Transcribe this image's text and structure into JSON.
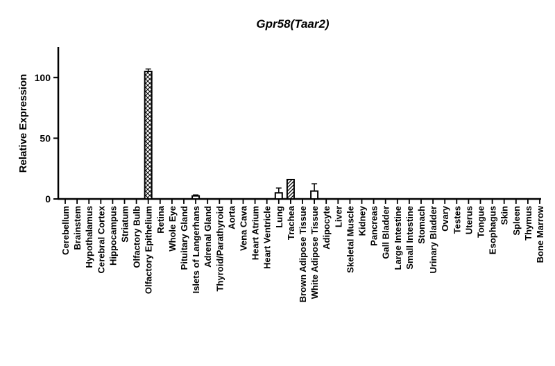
{
  "chart_data": {
    "type": "bar",
    "title": "Gpr58(Taar2)",
    "xlabel": "",
    "ylabel": "Relative Expression",
    "ylim": [
      0,
      125
    ],
    "yticks": [
      0,
      50,
      100
    ],
    "grid": false,
    "categories": [
      "Cerebellum",
      "Brainstem",
      "Hypothalamus",
      "Cerebral Cortex",
      "Hippocampus",
      "Striatum",
      "Olfactory Bulb",
      "Olfactory Epithelium",
      "Retina",
      "Whole Eye",
      "Pituitary Gland",
      "Islets of Langerhans",
      "Adrenal Gland",
      "Thyroid/Parathyroid",
      "Aorta",
      "Vena Cava",
      "Heart Atrium",
      "Heart Ventricle",
      "Lung",
      "Trachea",
      "Brown Adipose Tissue",
      "White Adipose Tissue",
      "Adipocyte",
      "Liver",
      "Skeletal Muscle",
      "Kidney",
      "Pancreas",
      "Gall Bladder",
      "Large Intestine",
      "Small Intestine",
      "Stomach",
      "Urinary Bladder",
      "Ovary",
      "Testes",
      "Uterus",
      "Tongue",
      "Esophagus",
      "Skin",
      "Spleen",
      "Thymus",
      "Bone Marrow"
    ],
    "values": [
      0,
      0,
      0,
      0,
      0,
      0,
      0,
      105,
      0,
      0,
      0,
      2.5,
      0,
      0,
      0,
      0,
      0,
      0,
      5,
      16,
      0,
      6.5,
      0,
      0,
      0,
      0,
      0,
      0,
      0,
      0,
      0,
      0,
      0,
      0,
      0,
      0,
      0,
      0,
      0,
      0,
      0
    ],
    "errors": [
      0,
      0,
      0,
      0,
      0,
      0,
      0,
      2,
      0,
      0,
      0,
      0.8,
      0,
      0,
      0,
      0,
      0,
      0,
      4,
      0,
      0,
      6,
      0,
      0,
      0,
      0,
      0,
      0,
      0,
      0,
      0,
      0,
      0,
      0,
      0,
      0,
      0,
      0,
      0,
      0,
      0
    ],
    "patterns": [
      "none",
      "none",
      "none",
      "none",
      "none",
      "none",
      "none",
      "crosshatch",
      "none",
      "none",
      "none",
      "none",
      "none",
      "none",
      "none",
      "none",
      "none",
      "none",
      "none",
      "diagonal",
      "none",
      "none",
      "none",
      "none",
      "none",
      "none",
      "none",
      "none",
      "none",
      "none",
      "none",
      "none",
      "none",
      "none",
      "none",
      "none",
      "none",
      "none",
      "none",
      "none",
      "none"
    ]
  }
}
